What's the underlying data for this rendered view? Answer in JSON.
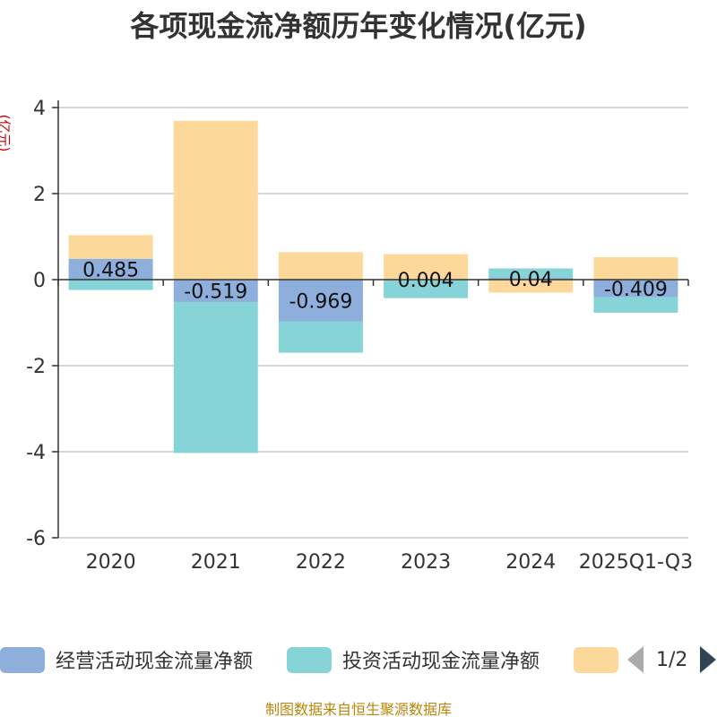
{
  "chart_data": {
    "type": "bar",
    "stacked": true,
    "title": "各项现金流净额历年变化情况(亿元)",
    "ylabel": "(亿元)",
    "xlabel": "",
    "ylim": [
      -6,
      4
    ],
    "yticks": [
      4,
      2,
      0,
      -2,
      -4,
      -6
    ],
    "categories": [
      "2020",
      "2021",
      "2022",
      "2023",
      "2024",
      "2025Q1-Q3"
    ],
    "series": [
      {
        "name": "经营活动现金流量净额",
        "color": "#8eaedb",
        "values": [
          0.485,
          -0.519,
          -0.969,
          0.004,
          0.04,
          -0.409
        ],
        "labels": [
          "0.485",
          "-0.519",
          "-0.969",
          "0.004",
          "0.04",
          "-0.409"
        ]
      },
      {
        "name": "投资活动现金流量净额",
        "color": "#86d4d8",
        "values": [
          -0.24,
          -3.51,
          -0.73,
          -0.43,
          0.22,
          -0.36
        ]
      },
      {
        "name": "",
        "color": "#fdd89b",
        "values": [
          0.55,
          3.69,
          0.64,
          0.59,
          -0.3,
          0.52
        ]
      }
    ],
    "legend_position": "bottom"
  },
  "legend": {
    "items": [
      {
        "label": "经营活动现金流量净额",
        "color": "#8eaedb"
      },
      {
        "label": "投资活动现金流量净额",
        "color": "#86d4d8"
      },
      {
        "label": "",
        "color": "#fdd89b"
      }
    ],
    "page_indicator": "1/2"
  },
  "source_note": "制图数据来自恒生聚源数据库"
}
